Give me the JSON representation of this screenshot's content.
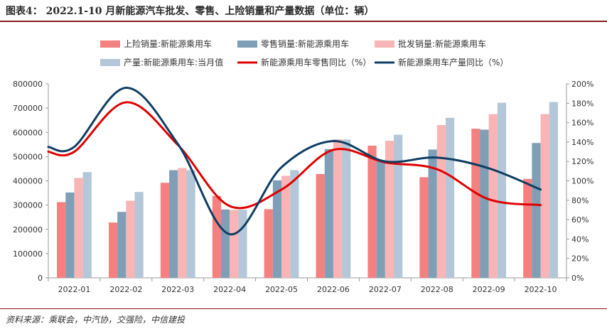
{
  "header": {
    "title": "图表4： 2022.1-10 月新能源汽车批发、零售、上险销量和产量数据（单位：辆）"
  },
  "footer": {
    "source": "资料来源：乘联会，中汽协，交强险，中信建投"
  },
  "colors": {
    "insurance": "#f4807f",
    "retail": "#7f9fb7",
    "wholesale": "#f9b4b6",
    "production": "#b3c7d8",
    "retail_yoy": "#e00000",
    "production_yoy": "#0f3d63",
    "axis": "#999999"
  },
  "chart_data": {
    "type": "bar",
    "title": "",
    "xlabel": "",
    "ylabel": "",
    "categories": [
      "2022-01",
      "2022-02",
      "2022-03",
      "2022-04",
      "2022-05",
      "2022-06",
      "2022-07",
      "2022-08",
      "2022-09",
      "2022-10"
    ],
    "ylim": [
      0,
      800000
    ],
    "yticks": [
      0,
      100000,
      200000,
      300000,
      400000,
      500000,
      600000,
      700000,
      800000
    ],
    "ytick_labels": [
      "0",
      "100000",
      "200000",
      "300000",
      "400000",
      "500000",
      "600000",
      "700000",
      "800000"
    ],
    "y2lim": [
      0,
      200
    ],
    "y2ticks": [
      0,
      20,
      40,
      60,
      80,
      100,
      120,
      140,
      160,
      180,
      200
    ],
    "y2tick_labels": [
      "0%",
      "20%",
      "40%",
      "60%",
      "80%",
      "100%",
      "120%",
      "140%",
      "160%",
      "180%",
      "200%"
    ],
    "legend_position": "top",
    "series": [
      {
        "name": "上险销量:新能源乘用车",
        "kind": "bar",
        "color_key": "insurance",
        "values": [
          312000,
          228000,
          392000,
          338000,
          283000,
          428000,
          545000,
          415000,
          615000,
          408000
        ]
      },
      {
        "name": "零售销量:新能源乘用车",
        "kind": "bar",
        "color_key": "retail",
        "values": [
          352000,
          272000,
          444000,
          282000,
          402000,
          531000,
          486000,
          529000,
          611000,
          556000
        ]
      },
      {
        "name": "批发销量:新能源乘用车",
        "kind": "bar",
        "color_key": "wholesale",
        "values": [
          412000,
          318000,
          453000,
          280000,
          421000,
          571000,
          565000,
          630000,
          675000,
          675000
        ]
      },
      {
        "name": "产量:新能源乘用车:当月值",
        "kind": "bar",
        "color_key": "production",
        "values": [
          436000,
          354000,
          444000,
          281000,
          444000,
          570000,
          590000,
          660000,
          722000,
          725000
        ]
      },
      {
        "name": "新能源乘用车零售同比（%）",
        "kind": "line",
        "axis": "right",
        "color_key": "retail_yoy",
        "values": [
          130,
          181,
          137,
          74,
          91,
          132,
          119,
          112,
          81,
          75
        ]
      },
      {
        "name": "新能源乘用车产量同比（%）",
        "kind": "line",
        "axis": "right",
        "color_key": "production_yoy",
        "values": [
          135,
          196,
          138,
          45,
          114,
          141,
          120,
          124,
          113,
          91
        ]
      }
    ]
  }
}
